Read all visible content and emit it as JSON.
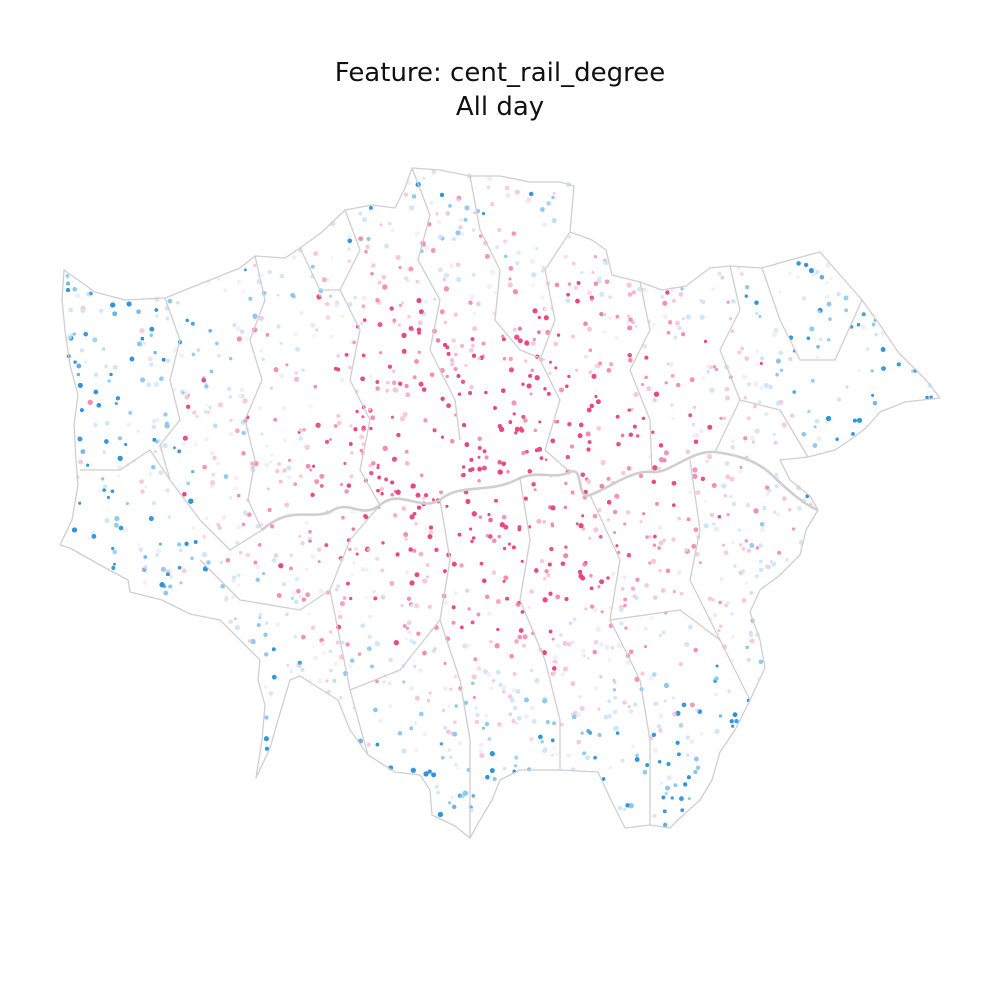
{
  "title": {
    "line1": "Feature: cent_rail_degree",
    "line2": "All day"
  },
  "map": {
    "region": "Greater London",
    "feature": "cent_rail_degree",
    "period": "All day",
    "colors": {
      "boundary": "#cfcfcf",
      "high": "#e8487e",
      "mid_high": "#f48fb1",
      "mid": "#f8c8da",
      "neutral": "#f3eef5",
      "mid_low": "#cfe6fb",
      "low": "#8cc8f0",
      "very_low": "#2f95db"
    }
  }
}
